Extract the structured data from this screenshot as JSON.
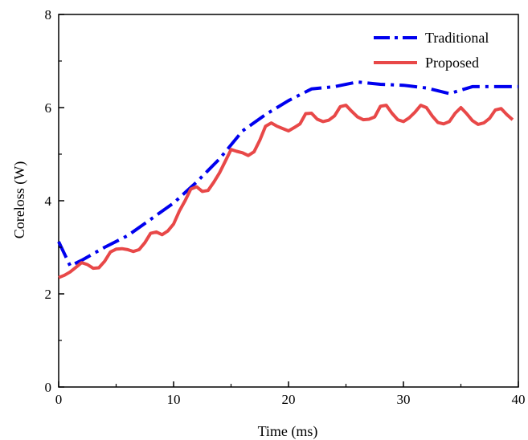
{
  "chart_data": {
    "type": "line",
    "title": "",
    "xlabel": "Time (ms)",
    "ylabel": "Coreloss (W)",
    "xlim": [
      0,
      40
    ],
    "ylim": [
      0,
      8
    ],
    "xticks": [
      0,
      10,
      20,
      30,
      40
    ],
    "yticks": [
      0,
      2,
      4,
      6,
      8
    ],
    "xtick_labels": [
      "0",
      "10",
      "20",
      "30",
      "40"
    ],
    "ytick_labels": [
      "0",
      "2",
      "4",
      "6",
      "8"
    ],
    "grid": false,
    "legend_position": "top-right",
    "series": [
      {
        "name": "Traditional",
        "color": "#0000ee",
        "style": "dash-dot",
        "x": [
          0,
          1,
          2,
          4,
          6,
          8,
          10,
          12,
          14,
          16,
          18,
          20,
          22,
          24,
          26,
          28,
          30,
          32,
          34,
          36,
          38,
          40
        ],
        "y": [
          3.12,
          2.6,
          2.72,
          3.0,
          3.25,
          3.6,
          3.95,
          4.4,
          4.9,
          5.5,
          5.85,
          6.15,
          6.4,
          6.45,
          6.55,
          6.5,
          6.48,
          6.42,
          6.3,
          6.45,
          6.45,
          6.45
        ]
      },
      {
        "name": "Proposed",
        "color": "#e84848",
        "style": "solid",
        "x": [
          0,
          0.5,
          1,
          1.5,
          2,
          2.5,
          3,
          3.5,
          4,
          4.5,
          5,
          5.5,
          6,
          6.5,
          7,
          7.5,
          8,
          8.5,
          9,
          9.5,
          10,
          10.5,
          11,
          11.5,
          12,
          12.5,
          13,
          13.5,
          14,
          14.5,
          15,
          15.5,
          16,
          16.5,
          17,
          17.5,
          18,
          18.5,
          19,
          19.5,
          20,
          20.5,
          21,
          21.5,
          22,
          22.5,
          23,
          23.5,
          24,
          24.5,
          25,
          25.5,
          26,
          26.5,
          27,
          27.5,
          28,
          28.5,
          29,
          29.5,
          30,
          30.5,
          31,
          31.5,
          32,
          32.5,
          33,
          33.5,
          34,
          34.5,
          35,
          35.5,
          36,
          36.5,
          37,
          37.5,
          38,
          38.5,
          39,
          39.5
        ],
        "y": [
          2.35,
          2.4,
          2.47,
          2.57,
          2.67,
          2.63,
          2.55,
          2.56,
          2.7,
          2.9,
          2.96,
          2.97,
          2.95,
          2.91,
          2.95,
          3.1,
          3.3,
          3.33,
          3.27,
          3.35,
          3.5,
          3.78,
          4.0,
          4.25,
          4.3,
          4.2,
          4.22,
          4.4,
          4.6,
          4.85,
          5.1,
          5.06,
          5.03,
          4.97,
          5.05,
          5.3,
          5.6,
          5.67,
          5.6,
          5.55,
          5.5,
          5.57,
          5.65,
          5.87,
          5.88,
          5.75,
          5.7,
          5.73,
          5.82,
          6.02,
          6.05,
          5.92,
          5.8,
          5.74,
          5.75,
          5.8,
          6.03,
          6.05,
          5.88,
          5.74,
          5.7,
          5.78,
          5.9,
          6.05,
          6.0,
          5.82,
          5.68,
          5.65,
          5.7,
          5.88,
          6.0,
          5.87,
          5.72,
          5.64,
          5.67,
          5.77,
          5.95,
          5.98,
          5.85,
          5.74
        ]
      }
    ]
  }
}
